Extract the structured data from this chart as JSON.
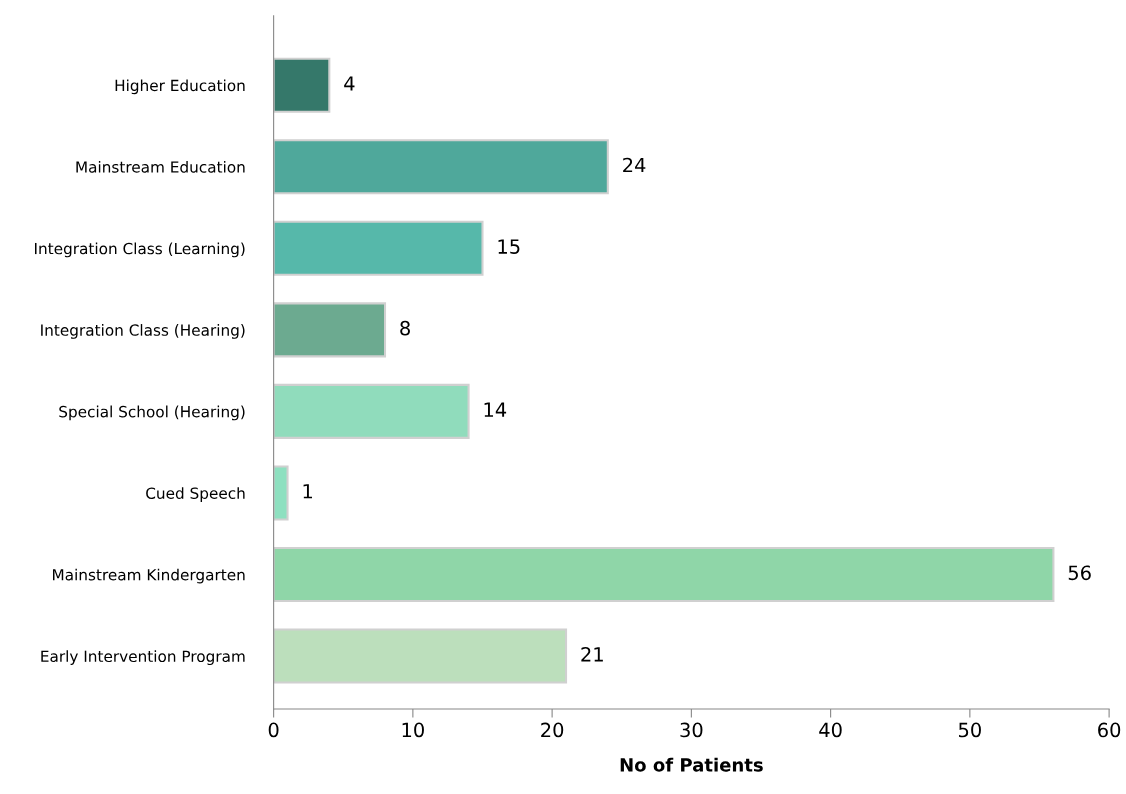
{
  "chart_data": {
    "type": "bar",
    "orientation": "horizontal",
    "xlabel": "No of Patients",
    "categories": [
      "Higher Education",
      "Mainstream Education",
      "Integration Class (Learning)",
      "Integration Class (Hearing)",
      "Special School (Hearing)",
      "Cued Speech",
      "Mainstream Kindergarten",
      "Early Intervention Program"
    ],
    "values": [
      4,
      24,
      15,
      8,
      14,
      1,
      56,
      21
    ],
    "colors": [
      "#35786a",
      "#4fa89b",
      "#56b8aa",
      "#6caa90",
      "#90dcbc",
      "#8ee0c0",
      "#8fd6a8",
      "#bcdfbc"
    ],
    "xlim": [
      0,
      60
    ],
    "xticks": [
      0,
      10,
      20,
      30,
      40,
      50,
      60
    ],
    "grid": false,
    "data_labels": true
  }
}
